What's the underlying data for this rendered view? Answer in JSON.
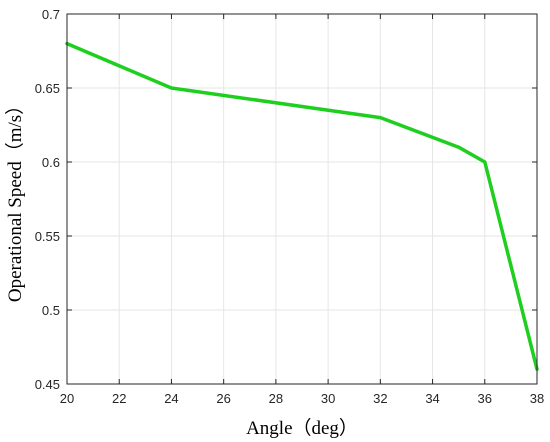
{
  "chart_data": {
    "type": "line",
    "title": "",
    "xlabel": "Angle（deg）",
    "ylabel": "Operational Speed（m/s）",
    "xlim": [
      20,
      38
    ],
    "ylim": [
      0.45,
      0.7
    ],
    "x_ticks": [
      20,
      22,
      24,
      26,
      28,
      30,
      32,
      34,
      36,
      38
    ],
    "y_ticks": [
      0.45,
      0.5,
      0.55,
      0.6,
      0.65,
      0.7
    ],
    "y_tick_labels": [
      "0.45",
      "0.5",
      "0.55",
      "0.6",
      "0.65",
      "0.7"
    ],
    "grid": true,
    "legend": "none",
    "series": [
      {
        "color": "#1fcf1f",
        "x": [
          20,
          24,
          32,
          35,
          36,
          38
        ],
        "y": [
          0.68,
          0.65,
          0.63,
          0.61,
          0.6,
          0.46
        ]
      }
    ]
  }
}
